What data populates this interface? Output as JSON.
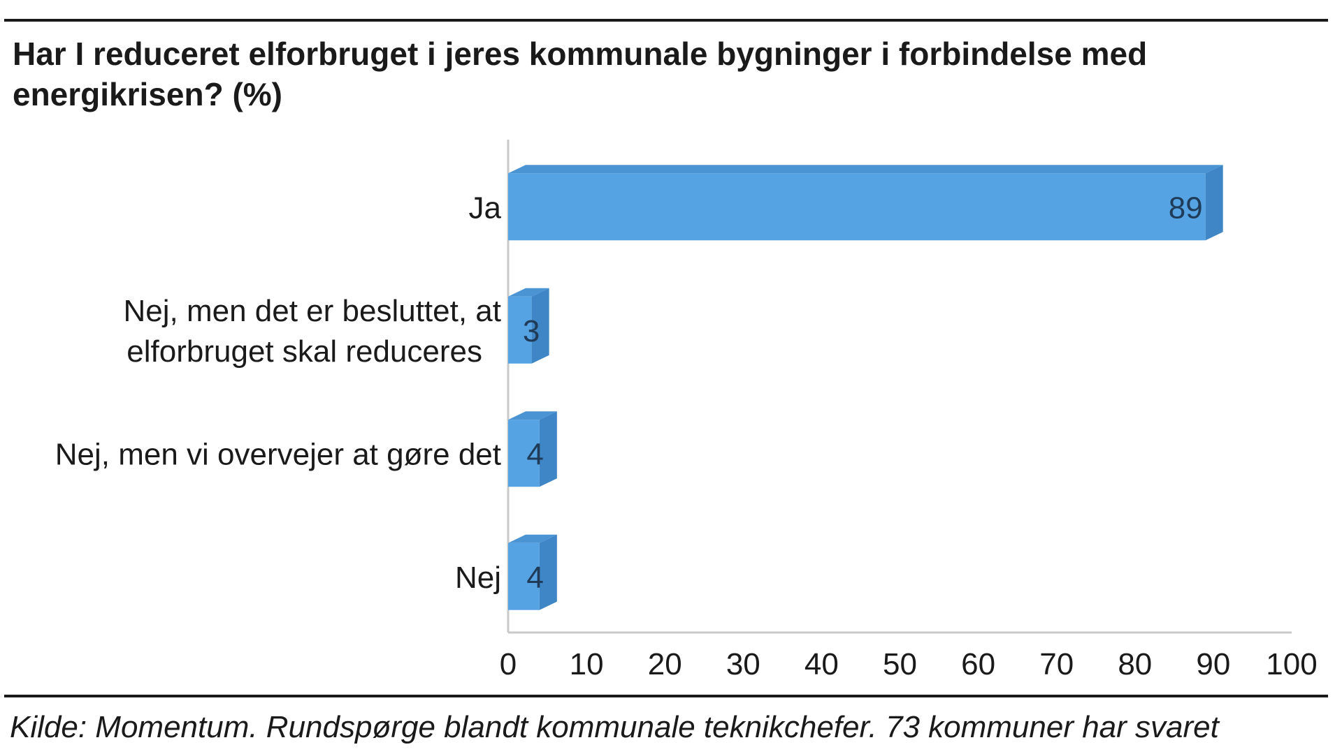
{
  "chart_data": {
    "type": "bar",
    "orientation": "horizontal",
    "title": "Har I reduceret elforbruget i jeres kommunale bygninger i forbindelse med energikrisen? (%)",
    "categories": [
      [
        "Ja"
      ],
      [
        "Nej, men det er besluttet, at",
        "elforbruget skal reduceres"
      ],
      [
        "Nej, men vi overvejer at gøre det"
      ],
      [
        "Nej"
      ]
    ],
    "values": [
      89,
      3,
      4,
      4
    ],
    "data_labels": [
      "89",
      "3",
      "4",
      "4"
    ],
    "xlim": [
      0,
      100
    ],
    "x_ticks": [
      "0",
      "10",
      "20",
      "30",
      "40",
      "50",
      "60",
      "70",
      "80",
      "90",
      "100"
    ],
    "bar_style": "3d",
    "bar_color": "#55a3e3",
    "bar_side_color": "#3f86c6",
    "bar_top_color": "#4b94d4",
    "grid": false,
    "legend": "none"
  },
  "source": "Kilde: Momentum. Rundspørge blandt kommunale teknikchefer. 73 kommuner har svaret"
}
